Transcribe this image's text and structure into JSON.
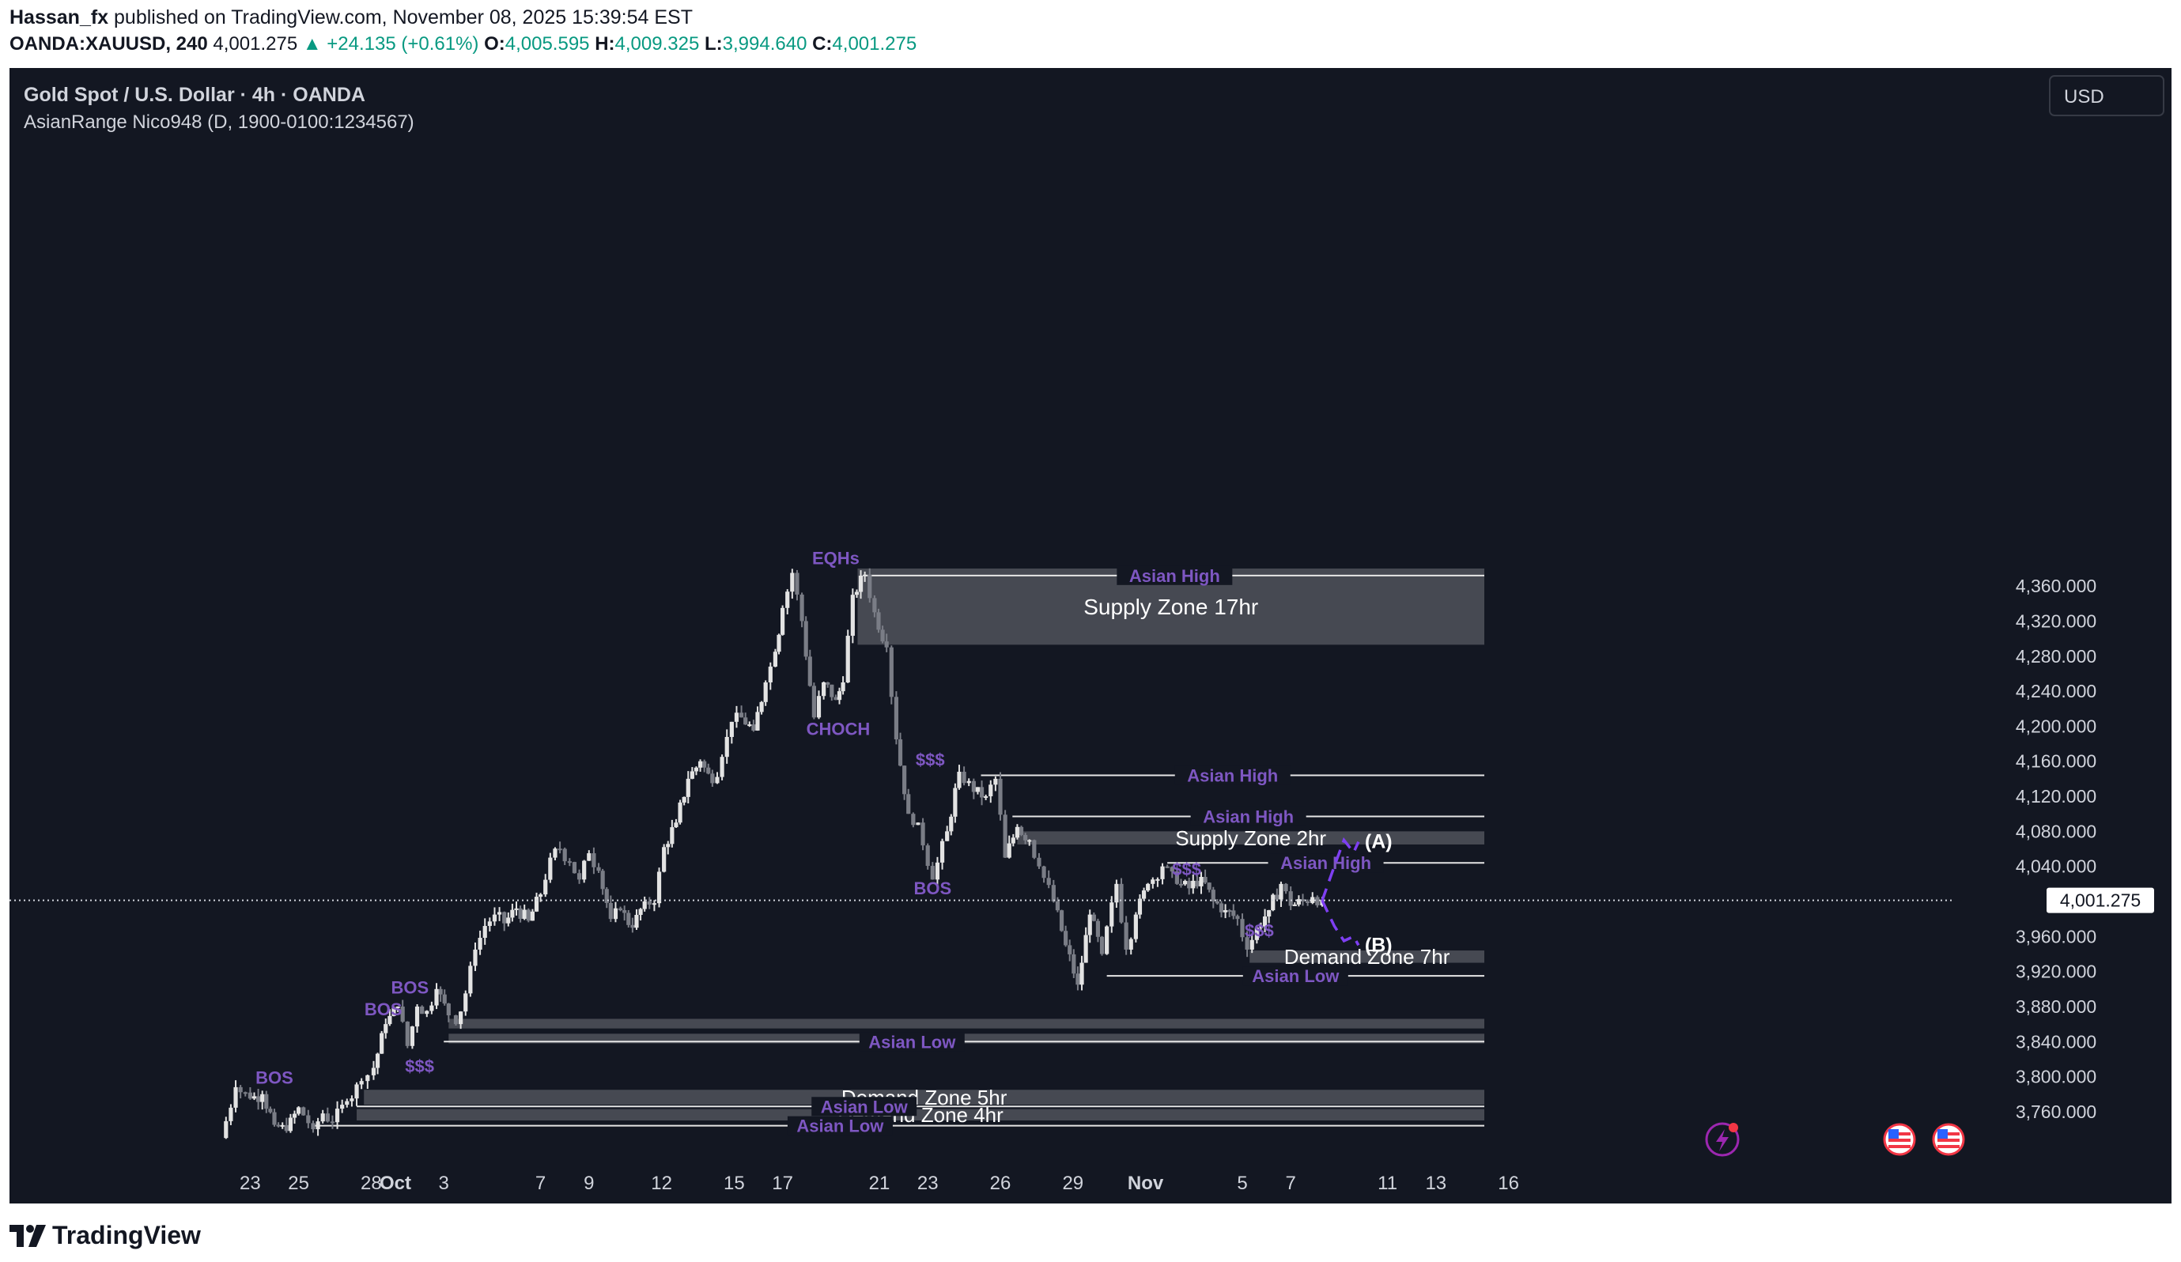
{
  "header": {
    "author": "Hassan_fx",
    "published_text": "published on TradingView.com, November 08, 2025 15:39:54 EST",
    "symbol": "OANDA:XAUUSD, 240",
    "last": "4,001.275",
    "change": "▲ +24.135 (+0.61%)",
    "o_label": "O:",
    "o_value": "4,005.595",
    "h_label": "H:",
    "h_value": "4,009.325",
    "l_label": "L:",
    "l_value": "3,994.640",
    "c_label": "C:",
    "c_value": "4,001.275"
  },
  "legend": {
    "title": "Gold Spot / U.S. Dollar · 4h · OANDA",
    "indicator": "AsianRange Nico948 (D, 1900-0100:1234567)"
  },
  "currency_button": "USD",
  "footer": {
    "brand": "TradingView"
  },
  "colors": {
    "background": "#131722",
    "candle_up": "#e3e3e3",
    "candle_down": "#7a7d86",
    "annotation": "#7e57c2",
    "zone": "#4b4e57",
    "up_text": "#089981"
  },
  "chart_data": {
    "type": "candlestick",
    "symbol": "XAUUSD",
    "timeframe": "4h",
    "currency": "USD",
    "ylim": [
      3725,
      4400
    ],
    "y_ticks": [
      "4,360.000",
      "4,320.000",
      "4,280.000",
      "4,240.000",
      "4,200.000",
      "4,160.000",
      "4,120.000",
      "4,080.000",
      "4,040.000",
      "3,960.000",
      "3,920.000",
      "3,880.000",
      "3,840.000",
      "3,800.000",
      "3,760.000"
    ],
    "y_tick_values": [
      4360,
      4320,
      4280,
      4240,
      4200,
      4160,
      4120,
      4080,
      4040,
      3960,
      3920,
      3880,
      3840,
      3800,
      3760
    ],
    "x_ticks": [
      {
        "label": "23",
        "t": -6
      },
      {
        "label": "25",
        "t": -4
      },
      {
        "label": "28",
        "t": -1
      },
      {
        "label": "Oct",
        "t": 0
      },
      {
        "label": "3",
        "t": 2
      },
      {
        "label": "7",
        "t": 6
      },
      {
        "label": "9",
        "t": 8
      },
      {
        "label": "12",
        "t": 11
      },
      {
        "label": "15",
        "t": 14
      },
      {
        "label": "17",
        "t": 16
      },
      {
        "label": "21",
        "t": 20
      },
      {
        "label": "23",
        "t": 22
      },
      {
        "label": "26",
        "t": 25
      },
      {
        "label": "29",
        "t": 28
      },
      {
        "label": "Nov",
        "t": 31
      },
      {
        "label": "5",
        "t": 35
      },
      {
        "label": "7",
        "t": 37
      },
      {
        "label": "11",
        "t": 41
      },
      {
        "label": "13",
        "t": 43
      },
      {
        "label": "16",
        "t": 46
      }
    ],
    "time_unit": "calendar days relative to Oct 1, 2025",
    "current_price": 4001.275,
    "current_price_label": "4,001.275",
    "path": [
      [
        -7.2,
        3730
      ],
      [
        -6.6,
        3788
      ],
      [
        -6.0,
        3775
      ],
      [
        -5.5,
        3780
      ],
      [
        -5.0,
        3745
      ],
      [
        -4.5,
        3738
      ],
      [
        -4.0,
        3765
      ],
      [
        -3.4,
        3740
      ],
      [
        -3.0,
        3758
      ],
      [
        -2.6,
        3748
      ],
      [
        -2.0,
        3772
      ],
      [
        -1.4,
        3795
      ],
      [
        -0.9,
        3810
      ],
      [
        -0.4,
        3860
      ],
      [
        0.1,
        3880
      ],
      [
        0.5,
        3835
      ],
      [
        0.9,
        3880
      ],
      [
        1.3,
        3875
      ],
      [
        1.7,
        3900
      ],
      [
        2.2,
        3870
      ],
      [
        2.5,
        3860
      ],
      [
        2.9,
        3895
      ],
      [
        3.3,
        3945
      ],
      [
        3.7,
        3972
      ],
      [
        4.1,
        3985
      ],
      [
        4.5,
        3975
      ],
      [
        5.0,
        3992
      ],
      [
        5.5,
        3978
      ],
      [
        6.0,
        4008
      ],
      [
        6.4,
        4050
      ],
      [
        6.8,
        4060
      ],
      [
        7.2,
        4045
      ],
      [
        7.6,
        4025
      ],
      [
        8.0,
        4055
      ],
      [
        8.4,
        4035
      ],
      [
        8.9,
        3980
      ],
      [
        9.3,
        3990
      ],
      [
        9.8,
        3970
      ],
      [
        10.3,
        4000
      ],
      [
        10.7,
        3998
      ],
      [
        11.1,
        4062
      ],
      [
        11.6,
        4090
      ],
      [
        12.1,
        4140
      ],
      [
        12.6,
        4160
      ],
      [
        13.1,
        4135
      ],
      [
        13.5,
        4165
      ],
      [
        13.9,
        4205
      ],
      [
        14.3,
        4210
      ],
      [
        14.8,
        4195
      ],
      [
        15.3,
        4250
      ],
      [
        15.7,
        4285
      ],
      [
        16.0,
        4335
      ],
      [
        16.4,
        4375
      ],
      [
        16.8,
        4320
      ],
      [
        17.3,
        4210
      ],
      [
        17.7,
        4250
      ],
      [
        18.2,
        4230
      ],
      [
        18.5,
        4250
      ],
      [
        18.9,
        4350
      ],
      [
        19.4,
        4373
      ],
      [
        19.8,
        4330
      ],
      [
        20.3,
        4290
      ],
      [
        20.7,
        4185
      ],
      [
        21.2,
        4100
      ],
      [
        21.6,
        4090
      ],
      [
        22.2,
        4025
      ],
      [
        22.8,
        4080
      ],
      [
        23.3,
        4148
      ],
      [
        23.9,
        4125
      ],
      [
        24.4,
        4120
      ],
      [
        24.8,
        4140
      ],
      [
        25.2,
        4050
      ],
      [
        25.7,
        4085
      ],
      [
        26.2,
        4070
      ],
      [
        26.6,
        4040
      ],
      [
        27.2,
        4000
      ],
      [
        27.7,
        3950
      ],
      [
        28.2,
        3905
      ],
      [
        28.7,
        3985
      ],
      [
        29.2,
        3940
      ],
      [
        29.8,
        4020
      ],
      [
        30.2,
        3945
      ],
      [
        30.6,
        3985
      ],
      [
        31.1,
        4020
      ],
      [
        31.7,
        4040
      ],
      [
        32.3,
        4020
      ],
      [
        32.8,
        4015
      ],
      [
        33.3,
        4028
      ],
      [
        33.8,
        4000
      ],
      [
        34.3,
        3990
      ],
      [
        34.8,
        3980
      ],
      [
        35.2,
        3945
      ],
      [
        35.6,
        3970
      ],
      [
        36.1,
        3990
      ],
      [
        36.6,
        4020
      ],
      [
        37.0,
        3995
      ],
      [
        37.5,
        4000
      ],
      [
        37.9,
        4005
      ],
      [
        38.3,
        4001.275
      ]
    ],
    "horizontal_lines": [
      {
        "label": "Asian High",
        "price": 4372,
        "t0": 19.4,
        "t1": 45
      },
      {
        "label": "Asian High",
        "price": 4144,
        "t0": 24.2,
        "t1": 45
      },
      {
        "label": "Asian High",
        "price": 4097,
        "t0": 25.5,
        "t1": 45
      },
      {
        "label": "Asian High",
        "price": 4044,
        "t0": 31.9,
        "t1": 45
      },
      {
        "label": "Asian Low",
        "price": 3915,
        "t0": 29.4,
        "t1": 45
      },
      {
        "label": "Asian Low",
        "price": 3840,
        "t0": 2.0,
        "t1": 45
      },
      {
        "label": "Asian Low",
        "price": 3766,
        "t0": -1.6,
        "t1": 45
      },
      {
        "label": "Asian Low",
        "price": 3744,
        "t0": -3.4,
        "t1": 45
      }
    ],
    "zones": [
      {
        "label": "Supply Zone 17hr",
        "top": 4380,
        "bottom": 4293,
        "t0": 19.1,
        "t1": 45
      },
      {
        "label": "Supply Zone 2hr",
        "top": 4080,
        "bottom": 4065,
        "t0": 25.7,
        "t1": 45
      },
      {
        "label": "Demand Zone 7hr",
        "top": 3944,
        "bottom": 3930,
        "t0": 35.3,
        "t1": 45
      },
      {
        "label": "",
        "top": 3866,
        "bottom": 3855,
        "t0": 2.2,
        "t1": 45
      },
      {
        "label": "",
        "top": 3849,
        "bottom": 3838,
        "t0": 2.2,
        "t1": 45
      },
      {
        "label": "Demand Zone 5hr",
        "top": 3785,
        "bottom": 3768,
        "t0": -1.3,
        "t1": 45
      },
      {
        "label": "Demand Zone 4hr",
        "top": 3763,
        "bottom": 3750,
        "t0": -1.6,
        "t1": 45
      }
    ],
    "annotations": [
      {
        "label": "EQHs",
        "t": 18.2,
        "price": 4385
      },
      {
        "label": "CHOCH",
        "t": 18.3,
        "price": 4190
      },
      {
        "label": "$$$",
        "t": 22.1,
        "price": 4155
      },
      {
        "label": "$$$",
        "t": 32.7,
        "price": 4030
      },
      {
        "label": "$$$",
        "t": 35.7,
        "price": 3960
      },
      {
        "label": "$$$",
        "t": 1.0,
        "price": 3805
      },
      {
        "label": "BOS",
        "t": 22.2,
        "price": 4008
      },
      {
        "label": "BOS",
        "t": 0.6,
        "price": 3895
      },
      {
        "label": "BOS",
        "t": -0.5,
        "price": 3870
      },
      {
        "label": "BOS",
        "t": -5.0,
        "price": 3792
      }
    ],
    "scenarios": [
      {
        "label": "(A)",
        "path": [
          [
            38.3,
            4001
          ],
          [
            38.8,
            4040
          ],
          [
            39.2,
            4070
          ],
          [
            39.6,
            4056
          ],
          [
            39.8,
            4068
          ]
        ]
      },
      {
        "label": "(B)",
        "path": [
          [
            38.3,
            4001
          ],
          [
            38.8,
            3972
          ],
          [
            39.2,
            3955
          ],
          [
            39.6,
            3960
          ],
          [
            39.8,
            3950
          ]
        ]
      }
    ]
  }
}
